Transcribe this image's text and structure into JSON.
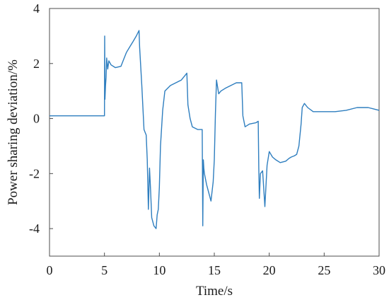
{
  "chart_data": {
    "type": "line",
    "title": "",
    "xlabel": "Time/s",
    "ylabel": "Power sharing deviation/%",
    "xlim": [
      0,
      30
    ],
    "ylim": [
      -5,
      4
    ],
    "xticks": [
      0,
      5,
      10,
      15,
      20,
      25,
      30
    ],
    "yticks": [
      -4,
      -2,
      0,
      2,
      4
    ],
    "grid": false,
    "legend": "none",
    "line_color": "#2e7ebf",
    "series": [
      {
        "x": [
          0,
          4.95,
          5.0,
          5.02,
          5.05,
          5.1,
          5.15,
          5.2,
          5.3,
          5.4,
          5.6,
          6.0,
          6.5,
          6.8,
          7.0,
          7.3,
          7.6,
          7.9,
          8.15,
          8.2,
          8.4,
          8.6,
          8.8,
          8.9,
          9.0,
          9.1,
          9.2,
          9.3,
          9.5,
          9.7,
          9.8,
          9.9,
          10.0,
          10.1,
          10.3,
          10.5,
          11.0,
          11.5,
          12.0,
          12.5,
          12.6,
          12.8,
          13.0,
          13.5,
          13.9,
          13.95,
          14.0,
          14.05,
          14.1,
          14.3,
          14.5,
          14.7,
          14.9,
          15.0,
          15.1,
          15.2,
          15.4,
          15.6,
          16.0,
          16.5,
          17.0,
          17.5,
          17.6,
          17.8,
          18.2,
          18.8,
          19.0,
          19.05,
          19.1,
          19.2,
          19.4,
          19.6,
          19.8,
          20.0,
          20.3,
          20.6,
          21.0,
          21.5,
          21.8,
          22.0,
          22.3,
          22.5,
          22.7,
          22.9,
          23.0,
          23.2,
          23.5,
          24.0,
          25.0,
          26.0,
          27.0,
          28.0,
          29.0,
          29.5,
          30.0
        ],
        "y": [
          0.1,
          0.1,
          0.1,
          3.0,
          0.7,
          1.2,
          1.5,
          2.2,
          1.8,
          2.1,
          1.95,
          1.85,
          1.9,
          2.2,
          2.4,
          2.6,
          2.8,
          3.0,
          3.2,
          2.6,
          1.2,
          -0.4,
          -0.6,
          -1.5,
          -3.3,
          -1.8,
          -2.6,
          -3.6,
          -3.9,
          -4.0,
          -3.5,
          -3.3,
          -2.5,
          -1.0,
          0.3,
          1.0,
          1.2,
          1.3,
          1.4,
          1.65,
          0.5,
          0.0,
          -0.3,
          -0.4,
          -0.4,
          -3.9,
          -1.5,
          -1.8,
          -2.0,
          -2.4,
          -2.7,
          -3.0,
          -2.3,
          -1.5,
          0.2,
          1.4,
          0.9,
          1.0,
          1.1,
          1.2,
          1.3,
          1.3,
          0.1,
          -0.3,
          -0.2,
          -0.15,
          -0.1,
          -1.8,
          -2.9,
          -2.0,
          -1.9,
          -3.2,
          -1.7,
          -1.2,
          -1.4,
          -1.5,
          -1.6,
          -1.55,
          -1.45,
          -1.4,
          -1.35,
          -1.3,
          -1.0,
          -0.2,
          0.4,
          0.55,
          0.4,
          0.25,
          0.25,
          0.25,
          0.3,
          0.4,
          0.4,
          0.35,
          0.3
        ]
      }
    ]
  }
}
